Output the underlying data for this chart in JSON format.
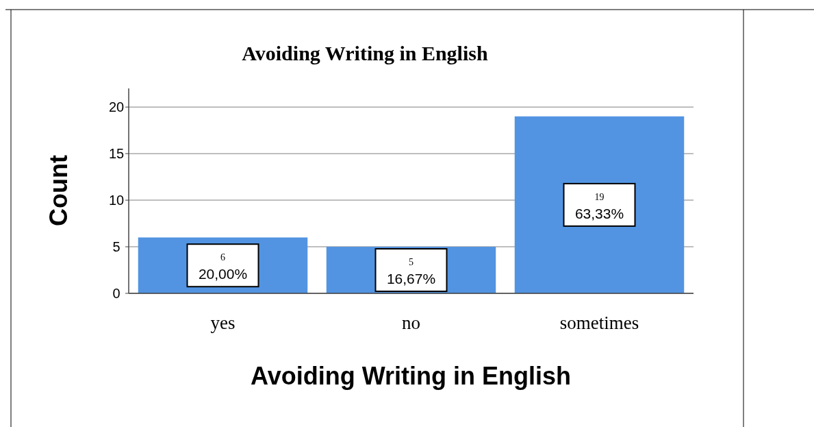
{
  "chart_data": {
    "type": "bar",
    "title": "Avoiding Writing in English",
    "xlabel": "Avoiding Writing in English",
    "ylabel": "Count",
    "categories": [
      "yes",
      "no",
      "sometimes"
    ],
    "values": [
      6,
      5,
      19
    ],
    "color": "#5294e2",
    "value_labels": [
      "6\n20,00%",
      "5\n16,67%",
      "19\n63,33%"
    ],
    "ylim": [
      0,
      22
    ],
    "yticks": [
      0,
      5,
      10,
      15,
      20
    ],
    "grid": "y"
  }
}
